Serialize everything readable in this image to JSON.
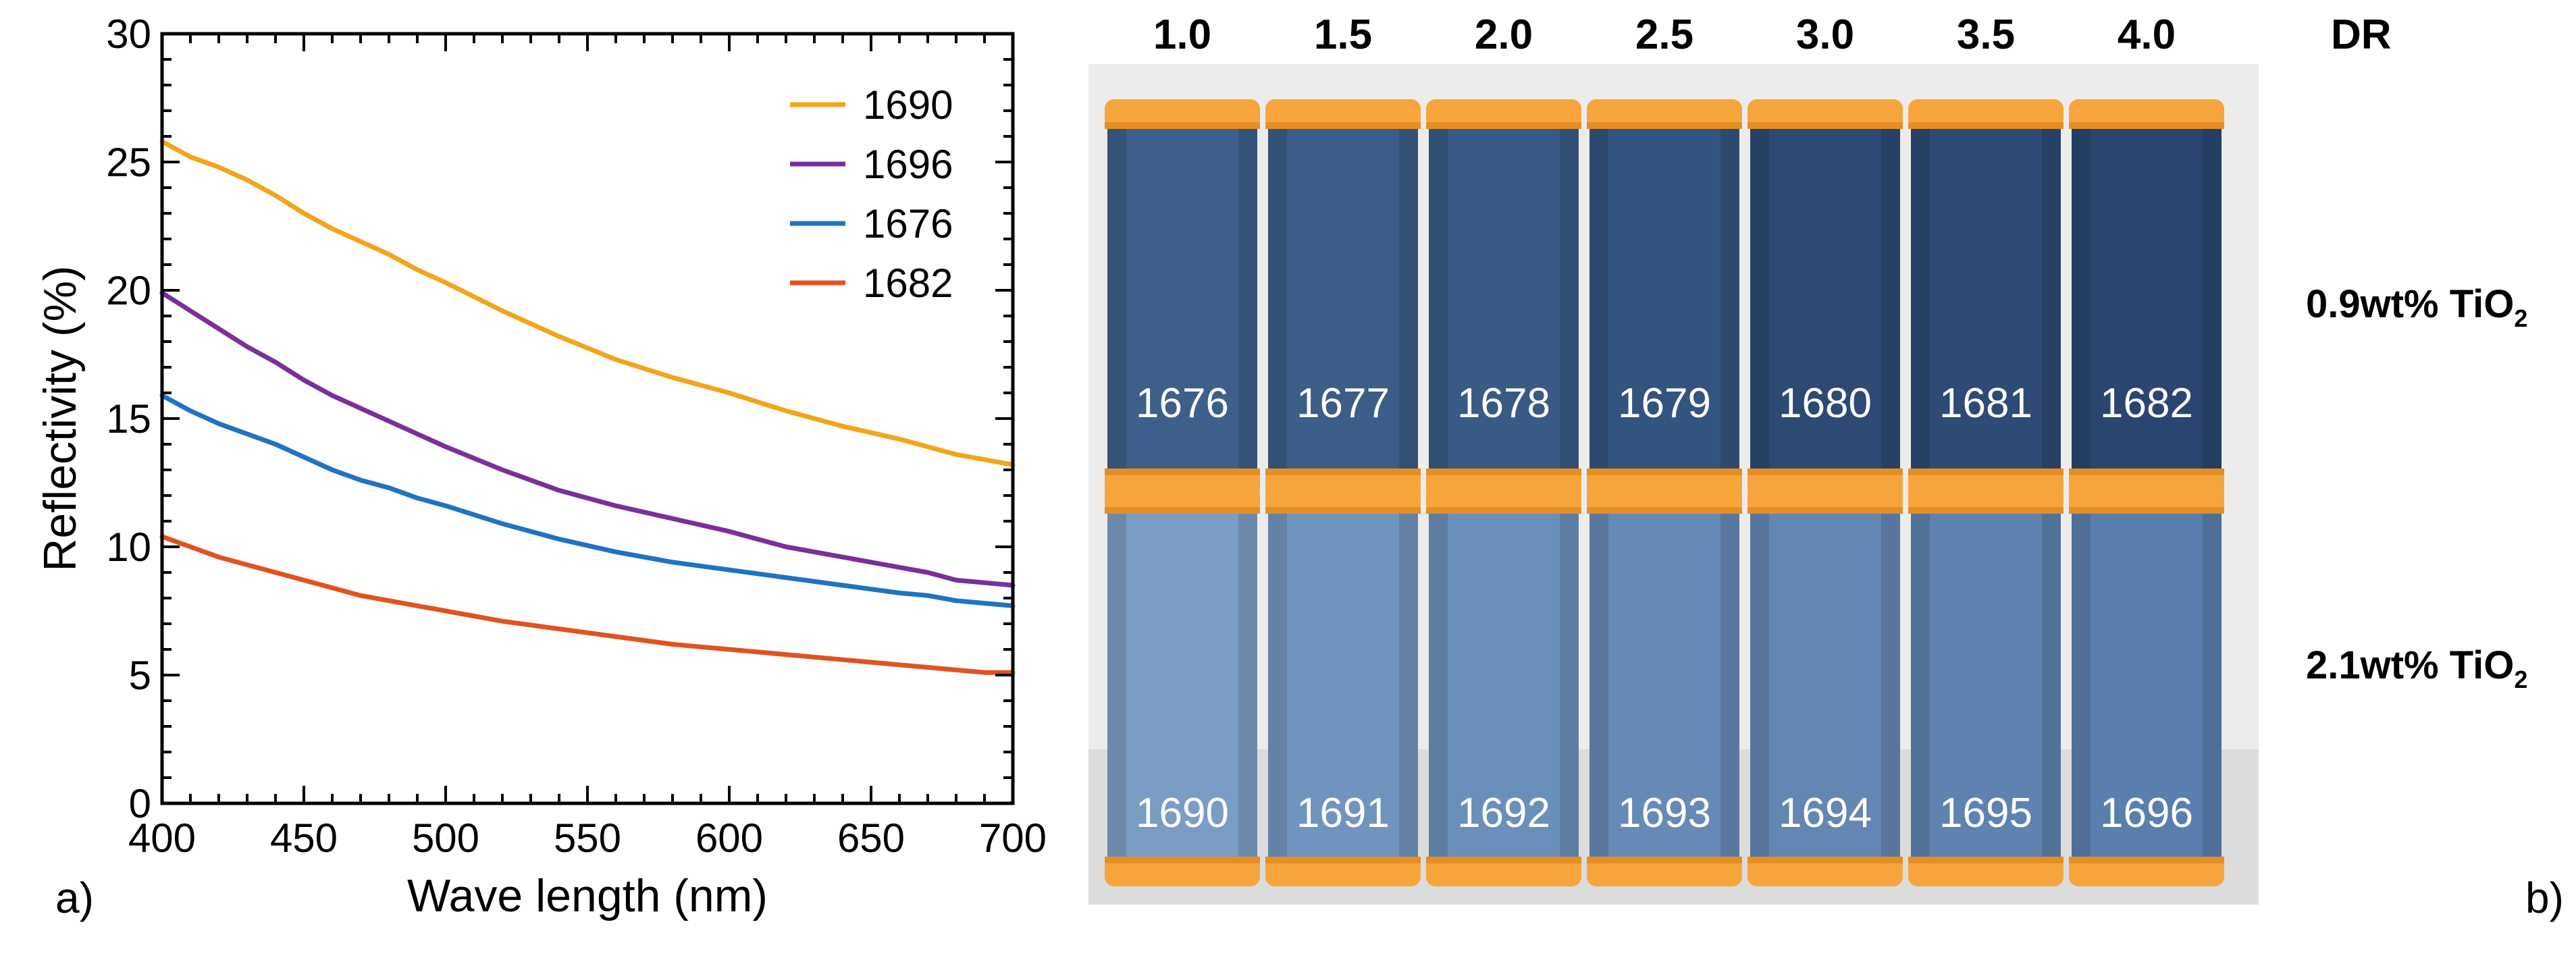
{
  "panel_a": {
    "label": "a)",
    "chart_data": {
      "type": "line",
      "xlabel": "Wave length (nm)",
      "ylabel": "Reflectivity (%)",
      "xlim": [
        400,
        700
      ],
      "ylim": [
        0,
        30
      ],
      "xticks": [
        400,
        450,
        500,
        550,
        600,
        650,
        700
      ],
      "yticks": [
        0,
        5,
        10,
        15,
        20,
        25,
        30
      ],
      "grid": false,
      "legend_position": "top-right",
      "x": [
        400,
        410,
        420,
        430,
        440,
        450,
        460,
        470,
        480,
        490,
        500,
        520,
        540,
        560,
        580,
        600,
        620,
        640,
        660,
        670,
        680,
        690,
        700
      ],
      "series": [
        {
          "name": "1690",
          "color": "#f2a51a",
          "values": [
            25.8,
            25.2,
            24.8,
            24.3,
            23.7,
            23.0,
            22.4,
            21.9,
            21.4,
            20.8,
            20.3,
            19.2,
            18.2,
            17.3,
            16.6,
            16.0,
            15.3,
            14.7,
            14.2,
            13.9,
            13.6,
            13.4,
            13.2
          ]
        },
        {
          "name": "1696",
          "color": "#7b2f9a",
          "values": [
            19.9,
            19.2,
            18.5,
            17.8,
            17.2,
            16.5,
            15.9,
            15.4,
            14.9,
            14.4,
            13.9,
            13.0,
            12.2,
            11.6,
            11.1,
            10.6,
            10.0,
            9.6,
            9.2,
            9.0,
            8.7,
            8.6,
            8.5
          ]
        },
        {
          "name": "1676",
          "color": "#1f73c2",
          "values": [
            15.9,
            15.3,
            14.8,
            14.4,
            14.0,
            13.5,
            13.0,
            12.6,
            12.3,
            11.9,
            11.6,
            10.9,
            10.3,
            9.8,
            9.4,
            9.1,
            8.8,
            8.5,
            8.2,
            8.1,
            7.9,
            7.8,
            7.7
          ]
        },
        {
          "name": "1682",
          "color": "#e0531f",
          "values": [
            10.4,
            10.0,
            9.6,
            9.3,
            9.0,
            8.7,
            8.4,
            8.1,
            7.9,
            7.7,
            7.5,
            7.1,
            6.8,
            6.5,
            6.2,
            6.0,
            5.8,
            5.6,
            5.4,
            5.3,
            5.2,
            5.1,
            5.1
          ]
        }
      ]
    }
  },
  "panel_b": {
    "label": "b)",
    "dr_header": "DR",
    "dr_values": [
      "1.0",
      "1.5",
      "2.0",
      "2.5",
      "3.0",
      "3.5",
      "4.0"
    ],
    "rows": [
      {
        "label_main": "0.9wt% TiO",
        "label_sub": "2",
        "spools": [
          "1676",
          "1677",
          "1678",
          "1679",
          "1680",
          "1681",
          "1682"
        ],
        "colors": [
          "#3d5f8a",
          "#3b5d88",
          "#385a85",
          "#345480",
          "#2c4a74",
          "#2d4b75",
          "#2a4670"
        ]
      },
      {
        "label_main": "2.1wt% TiO",
        "label_sub": "2",
        "spools": [
          "1690",
          "1691",
          "1692",
          "1693",
          "1694",
          "1695",
          "1696"
        ],
        "colors": [
          "#7b9cc4",
          "#7194be",
          "#6a8fba",
          "#6789b6",
          "#6486b3",
          "#5f82b0",
          "#5a7ead"
        ]
      }
    ],
    "colors": {
      "cap": "#f6a53c",
      "cap_dark": "#e58e24",
      "background": "#e8e8e8"
    }
  }
}
